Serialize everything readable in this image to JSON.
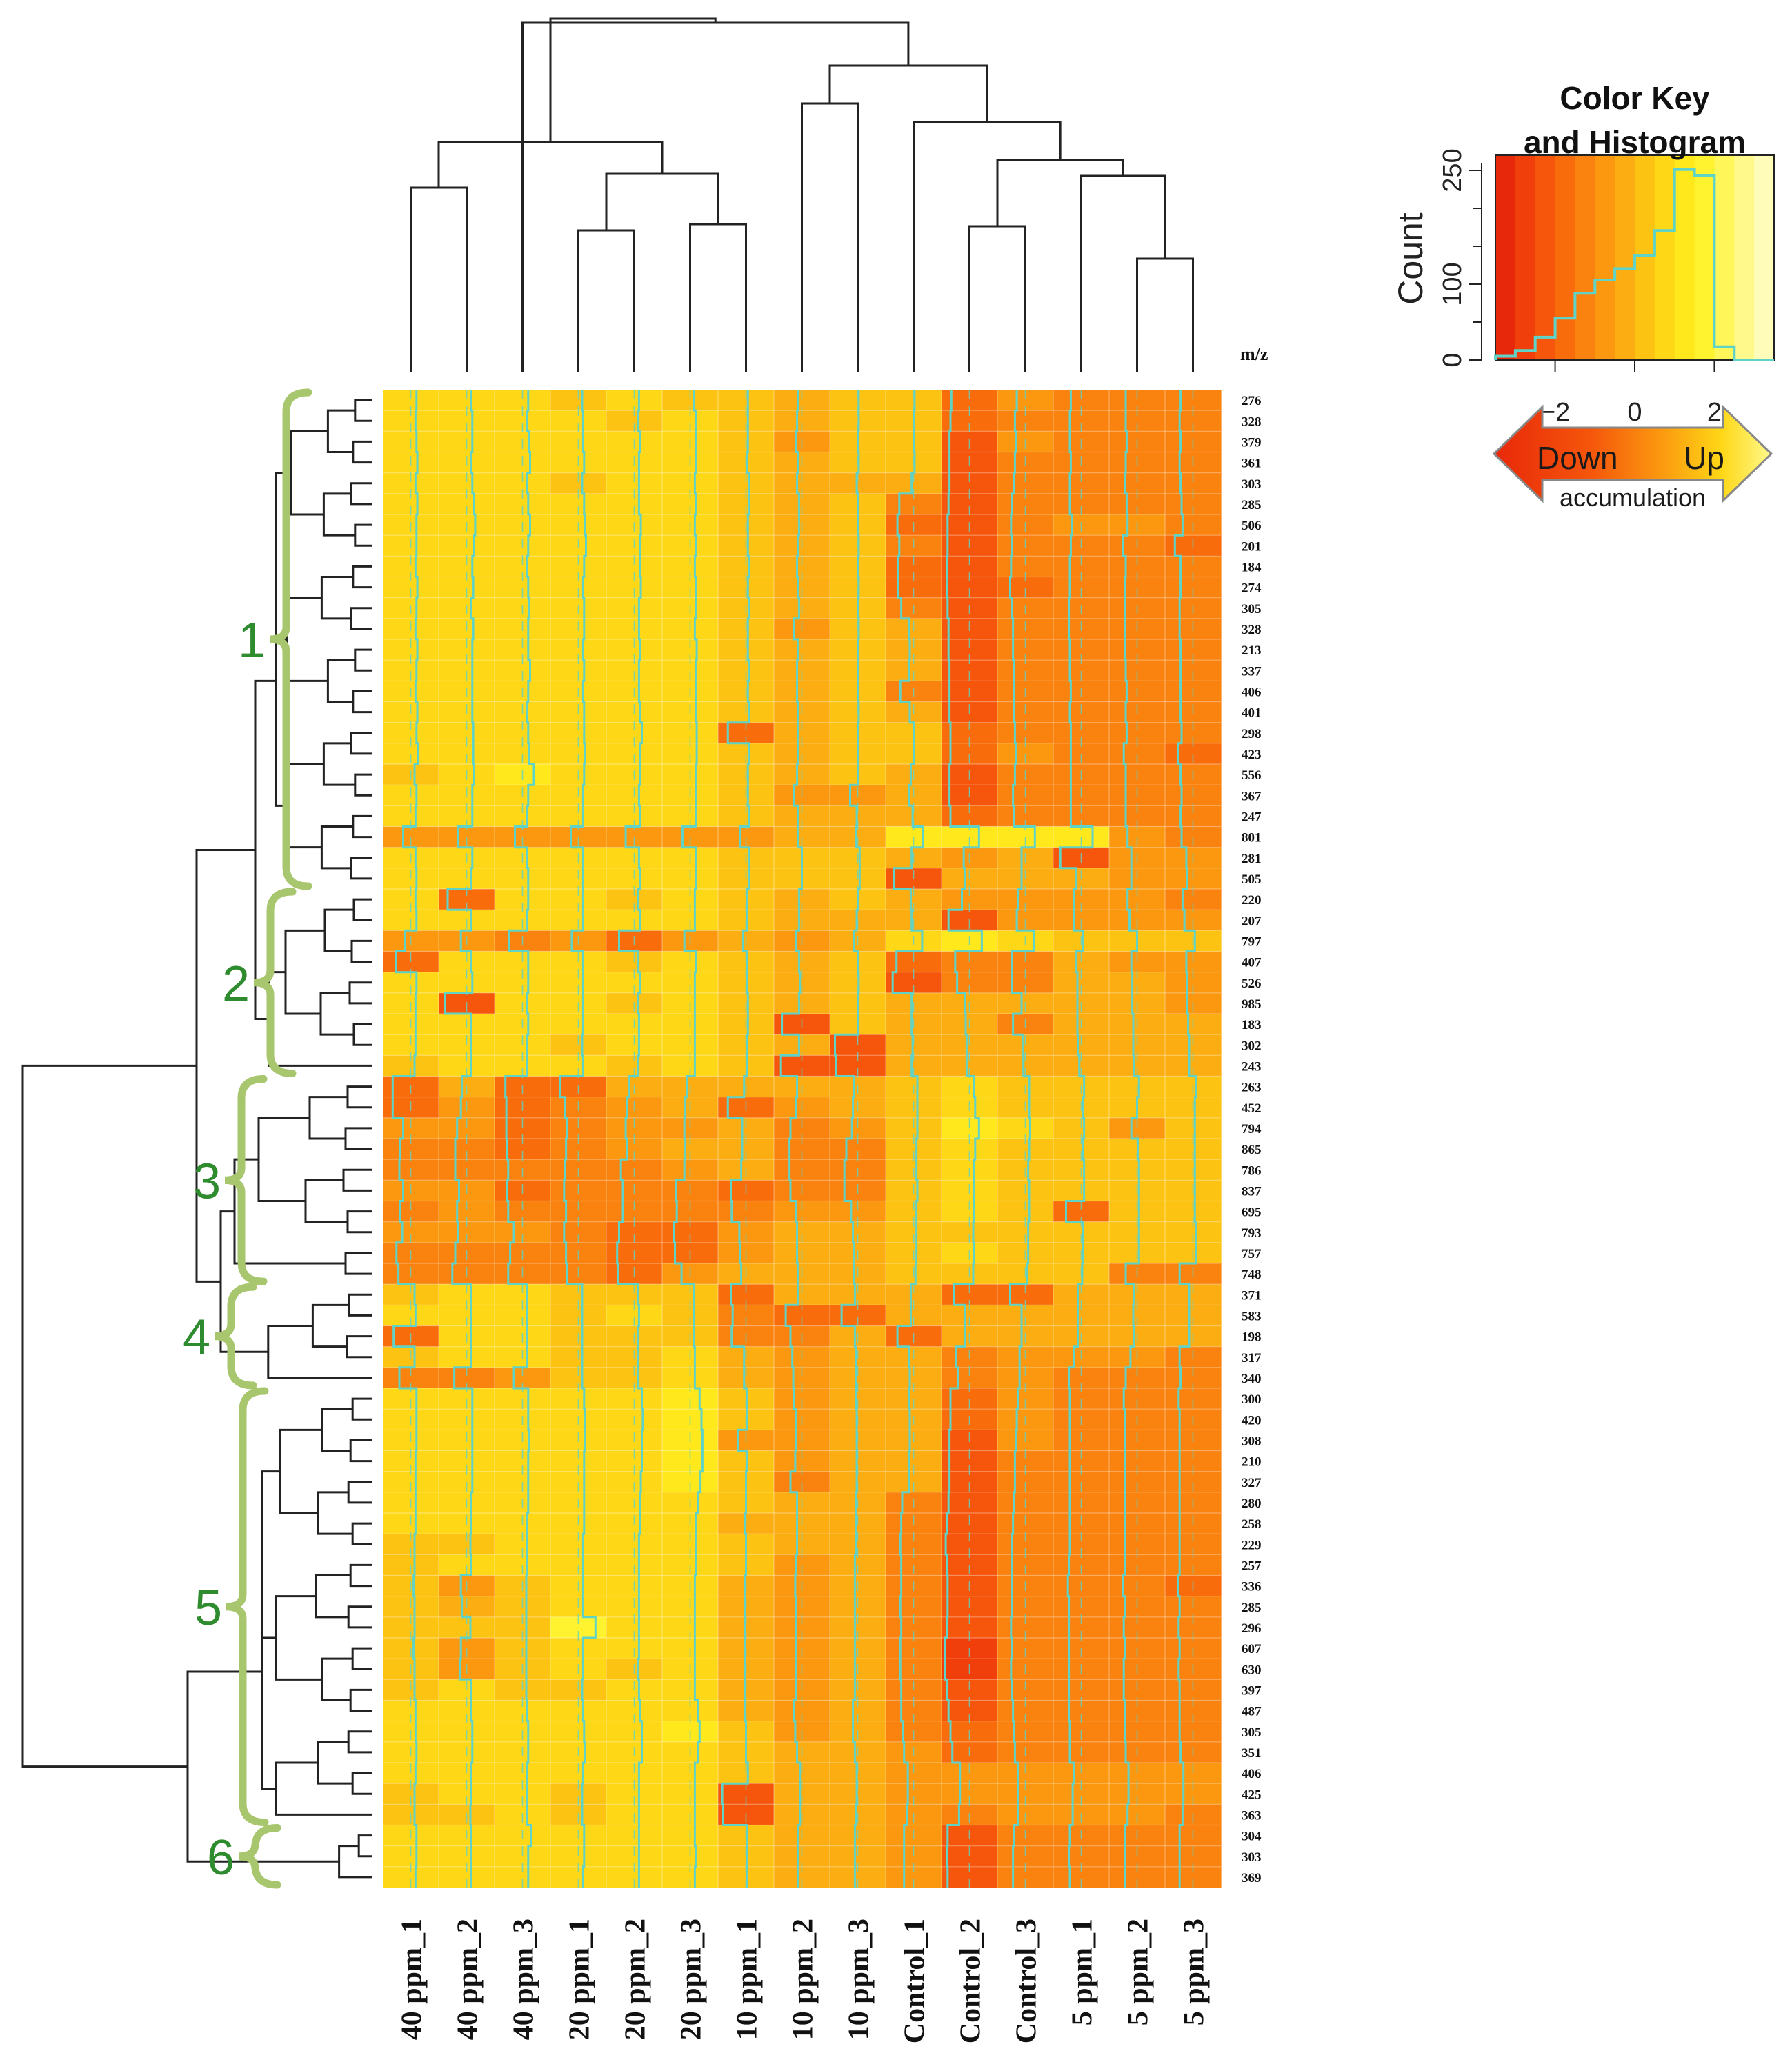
{
  "chart_data": {
    "type": "heatmap",
    "title": "",
    "row_axis_label": "m/z",
    "columns": [
      "40 ppm_1",
      "40 ppm_2",
      "40 ppm_3",
      "20 ppm_1",
      "20 ppm_2",
      "20 ppm_3",
      "10 ppm_1",
      "10 ppm_2",
      "10 ppm_3",
      "Control_1",
      "Control_2",
      "Control_3",
      "5 ppm_1",
      "5 ppm_2",
      "5 ppm_3"
    ],
    "rows": [
      "276",
      "328",
      "379",
      "361",
      "303",
      "285",
      "506",
      "201",
      "184",
      "274",
      "305",
      "328",
      "213",
      "337",
      "406",
      "401",
      "298",
      "423",
      "556",
      "367",
      "247",
      "801",
      "281",
      "505",
      "220",
      "207",
      "797",
      "407",
      "526",
      "985",
      "183",
      "302",
      "243",
      "263",
      "452",
      "794",
      "865",
      "786",
      "837",
      "695",
      "793",
      "757",
      "748",
      "371",
      "583",
      "198",
      "317",
      "340",
      "300",
      "420",
      "308",
      "210",
      "327",
      "280",
      "258",
      "229",
      "257",
      "336",
      "285",
      "296",
      "607",
      "630",
      "397",
      "487",
      "305",
      "351",
      "406",
      "425",
      "363",
      "304",
      "303",
      "369"
    ],
    "clusters": [
      {
        "label": "1",
        "from": 0,
        "to": 23
      },
      {
        "label": "2",
        "from": 24,
        "to": 32
      },
      {
        "label": "3",
        "from": 33,
        "to": 42
      },
      {
        "label": "4",
        "from": 43,
        "to": 47
      },
      {
        "label": "5",
        "from": 48,
        "to": 68
      },
      {
        "label": "6",
        "from": 69,
        "to": 71
      }
    ],
    "color_key": {
      "title_line1": "Color Key",
      "title_line2": "and Histogram",
      "ylabel": "Count",
      "y_ticks": [
        "0",
        "100",
        "250"
      ],
      "x_ticks": [
        "−2",
        "0",
        "2"
      ],
      "x_range": [
        -3.5,
        3.5
      ],
      "y_max": 270,
      "histogram_bins": [
        0.02,
        0.05,
        0.12,
        0.22,
        0.35,
        0.42,
        0.48,
        0.55,
        0.68,
        1.0,
        0.97,
        0.07,
        0.0,
        0.0
      ],
      "arrow_down": "Down",
      "arrow_up": "Up",
      "arrow_sub": "accumulation",
      "colors": [
        "#e8280a",
        "#f03f0a",
        "#f5560b",
        "#f86c0c",
        "#fa820e",
        "#fb980f",
        "#fcad11",
        "#fdc313",
        "#fed716",
        "#ffe81c",
        "#fff22e",
        "#fff65a",
        "#fff98c",
        "#fffbb8"
      ]
    },
    "cell_values_note": "z-score estimates, range about -3 to 2",
    "values": [
      [
        0.6,
        0.5,
        0.6,
        0.4,
        0.5,
        0.4,
        0.2,
        -0.4,
        0.1,
        0.1,
        -1.9,
        -0.9,
        -1.1,
        -1.2,
        -1.3
      ],
      [
        0.5,
        0.6,
        0.5,
        0.5,
        0.4,
        0.6,
        0.2,
        -0.5,
        0.1,
        0.0,
        -2.0,
        -1.1,
        -1.2,
        -1.2,
        -1.4
      ],
      [
        0.6,
        0.6,
        0.7,
        0.5,
        0.6,
        0.6,
        0.2,
        -0.6,
        0.0,
        0.0,
        -2.1,
        -1.0,
        -1.2,
        -1.1,
        -1.3
      ],
      [
        0.7,
        0.5,
        0.8,
        0.6,
        0.5,
        0.6,
        0.1,
        -0.4,
        0.1,
        0.1,
        -2.1,
        -1.1,
        -1.1,
        -1.2,
        -1.4
      ],
      [
        0.5,
        0.6,
        0.5,
        0.4,
        0.5,
        0.5,
        0.3,
        -0.5,
        -0.1,
        -0.2,
        -2.1,
        -1.2,
        -1.2,
        -1.3,
        -1.3
      ],
      [
        0.7,
        0.8,
        0.6,
        0.6,
        0.5,
        0.6,
        0.3,
        -0.3,
        0.0,
        -1.5,
        -2.2,
        -1.4,
        -1.2,
        -1.1,
        -1.2
      ],
      [
        0.6,
        0.9,
        0.8,
        0.7,
        0.7,
        0.5,
        0.2,
        -0.3,
        0.0,
        -1.7,
        -2.3,
        -1.5,
        -1.0,
        -1.0,
        -1.1
      ],
      [
        0.6,
        0.8,
        0.6,
        0.8,
        0.6,
        0.6,
        0.2,
        -0.4,
        0.1,
        -1.5,
        -2.3,
        -1.4,
        -1.1,
        -1.5,
        -1.9
      ],
      [
        0.5,
        0.6,
        0.5,
        0.6,
        0.6,
        0.5,
        0.3,
        -0.5,
        0.0,
        -1.6,
        -2.4,
        -1.5,
        -1.2,
        -1.2,
        -1.3
      ],
      [
        0.7,
        0.7,
        0.6,
        0.5,
        0.7,
        0.6,
        0.2,
        -0.4,
        0.1,
        -1.6,
        -2.4,
        -1.6,
        -1.2,
        -1.3,
        -1.3
      ],
      [
        0.6,
        0.5,
        0.7,
        0.6,
        0.5,
        0.6,
        0.3,
        -0.3,
        0.0,
        -1.3,
        -2.3,
        -1.4,
        -1.3,
        -1.3,
        -1.4
      ],
      [
        0.5,
        0.7,
        0.6,
        0.6,
        0.5,
        0.5,
        0.2,
        -0.8,
        0.1,
        -0.5,
        -2.2,
        -1.3,
        -1.3,
        -1.3,
        -1.4
      ],
      [
        0.7,
        0.6,
        0.6,
        0.5,
        0.6,
        0.7,
        0.2,
        -0.4,
        0.0,
        -0.4,
        -2.2,
        -1.3,
        -1.2,
        -1.3,
        -1.3
      ],
      [
        0.6,
        0.6,
        0.8,
        0.6,
        0.5,
        0.6,
        0.3,
        -0.5,
        0.0,
        -0.5,
        -2.1,
        -1.2,
        -1.2,
        -1.2,
        -1.3
      ],
      [
        0.5,
        0.6,
        0.6,
        0.5,
        0.5,
        0.6,
        0.2,
        -0.5,
        0.0,
        -1.4,
        -2.1,
        -1.2,
        -1.1,
        -1.1,
        -1.3
      ],
      [
        0.7,
        0.6,
        0.5,
        0.6,
        0.6,
        0.6,
        0.3,
        -0.4,
        0.1,
        -0.4,
        -2.1,
        -1.2,
        -1.2,
        -1.2,
        -1.3
      ],
      [
        0.6,
        0.7,
        0.6,
        0.6,
        0.8,
        0.7,
        -1.9,
        -0.4,
        0.0,
        0.0,
        -2.0,
        -1.1,
        -1.1,
        -1.1,
        -1.2
      ],
      [
        0.8,
        0.7,
        0.7,
        0.7,
        0.6,
        0.7,
        0.3,
        -0.4,
        0.0,
        0.0,
        -2.0,
        -1.0,
        -1.1,
        -1.4,
        -1.6
      ],
      [
        0.4,
        0.8,
        1.2,
        0.6,
        0.6,
        0.6,
        0.2,
        -0.5,
        0.0,
        -0.3,
        -2.1,
        -1.1,
        -1.1,
        -1.2,
        -1.3
      ],
      [
        0.6,
        0.6,
        0.6,
        0.5,
        0.5,
        0.6,
        0.2,
        -0.8,
        -0.8,
        -0.5,
        -2.1,
        -1.3,
        -1.1,
        -1.2,
        -1.2
      ],
      [
        0.5,
        0.6,
        0.5,
        0.5,
        0.6,
        0.6,
        0.3,
        -0.4,
        -0.1,
        -0.1,
        -2.0,
        -1.2,
        -1.1,
        -1.2,
        -1.3
      ],
      [
        -0.8,
        -0.9,
        -0.8,
        -0.8,
        -0.9,
        -0.8,
        -0.6,
        -0.4,
        -0.2,
        1.0,
        1.0,
        1.0,
        1.2,
        -1.0,
        -1.2
      ],
      [
        0.5,
        0.6,
        0.5,
        0.5,
        0.5,
        0.6,
        0.3,
        0.0,
        0.2,
        -0.2,
        -0.6,
        -0.4,
        -2.2,
        -0.6,
        -0.7
      ],
      [
        0.6,
        0.5,
        0.6,
        0.5,
        0.6,
        0.6,
        0.3,
        0.0,
        0.2,
        -2.1,
        -0.5,
        -0.4,
        -0.5,
        -0.6,
        -0.6
      ],
      [
        0.5,
        -2.0,
        0.6,
        0.5,
        0.4,
        0.5,
        0.1,
        -0.3,
        0.0,
        -0.3,
        -0.8,
        -0.8,
        -0.8,
        -1.0,
        -1.1
      ],
      [
        0.6,
        0.5,
        0.5,
        0.5,
        0.6,
        0.5,
        0.1,
        -0.3,
        -0.1,
        -0.2,
        -2.2,
        -0.9,
        -0.8,
        -0.8,
        -0.9
      ],
      [
        -0.6,
        -0.6,
        -1.4,
        -0.7,
        -1.6,
        -0.6,
        -0.3,
        -0.6,
        -0.4,
        0.9,
        1.3,
        0.9,
        0.2,
        0.0,
        0.2
      ],
      [
        -1.6,
        0.5,
        0.6,
        0.5,
        0.4,
        0.6,
        0.1,
        -0.3,
        0.0,
        -1.8,
        -1.5,
        -1.4,
        -0.5,
        -0.6,
        -0.7
      ],
      [
        0.6,
        0.6,
        0.6,
        0.5,
        0.6,
        0.5,
        0.1,
        -0.2,
        0.1,
        -2.2,
        -1.3,
        -1.4,
        -0.4,
        -0.5,
        -0.6
      ],
      [
        0.5,
        -2.3,
        0.5,
        0.5,
        0.4,
        0.5,
        0.2,
        -0.3,
        0.0,
        -0.2,
        -0.5,
        -0.4,
        -0.4,
        -0.5,
        -0.6
      ],
      [
        0.5,
        0.5,
        0.6,
        0.5,
        0.5,
        0.5,
        0.2,
        -2.1,
        0.0,
        -0.2,
        -0.4,
        -1.3,
        -0.4,
        -0.4,
        -0.5
      ],
      [
        0.5,
        0.5,
        0.5,
        0.4,
        0.5,
        0.5,
        0.1,
        -0.3,
        -2.4,
        -0.1,
        -0.3,
        -0.3,
        -0.3,
        -0.4,
        -0.4
      ],
      [
        0.4,
        0.5,
        0.5,
        0.5,
        0.4,
        0.5,
        0.1,
        -2.2,
        -2.3,
        -0.2,
        -0.3,
        -0.2,
        -0.2,
        -0.3,
        -0.4
      ],
      [
        -1.9,
        -0.5,
        -1.8,
        -1.9,
        -0.5,
        -0.3,
        -0.2,
        -0.5,
        -0.4,
        0.4,
        0.5,
        0.4,
        0.3,
        0.2,
        0.3
      ],
      [
        -1.9,
        -0.6,
        -1.7,
        -1.4,
        -0.8,
        -0.5,
        -1.9,
        -0.6,
        -0.5,
        0.4,
        0.6,
        0.4,
        0.2,
        0.0,
        0.2
      ],
      [
        -0.8,
        -1.0,
        -1.7,
        -1.2,
        -0.9,
        -0.6,
        -0.4,
        -1.2,
        -0.6,
        0.4,
        1.0,
        0.5,
        0.3,
        -0.6,
        0.2
      ],
      [
        -1.1,
        -1.2,
        -1.6,
        -1.3,
        -0.8,
        -0.5,
        -0.4,
        -1.3,
        -1.2,
        0.3,
        0.6,
        0.4,
        0.2,
        0.1,
        0.2
      ],
      [
        -1.2,
        -1.2,
        -1.5,
        -1.4,
        -1.4,
        -0.6,
        -0.5,
        -1.3,
        -1.4,
        0.3,
        0.5,
        0.3,
        0.3,
        0.2,
        0.2
      ],
      [
        -0.8,
        -0.8,
        -1.6,
        -1.5,
        -1.2,
        -1.5,
        -1.6,
        -1.2,
        -1.4,
        0.4,
        0.5,
        0.4,
        0.3,
        0.2,
        0.2
      ],
      [
        -1.1,
        -1.0,
        -1.5,
        -1.3,
        -1.2,
        -1.4,
        -1.5,
        -0.6,
        -0.7,
        0.3,
        0.5,
        0.4,
        -1.6,
        0.2,
        0.2
      ],
      [
        -0.9,
        -0.9,
        -0.9,
        -1.5,
        -1.6,
        -1.7,
        -0.7,
        -0.5,
        -0.5,
        0.3,
        0.4,
        0.3,
        0.2,
        0.2,
        0.3
      ],
      [
        -1.5,
        -1.2,
        -1.3,
        -1.3,
        -1.8,
        -1.6,
        -0.6,
        -0.5,
        -0.4,
        0.3,
        0.5,
        0.3,
        0.2,
        0.2,
        0.3
      ],
      [
        -1.3,
        -1.5,
        -1.5,
        -1.2,
        -1.7,
        -0.9,
        -0.5,
        -0.4,
        -0.4,
        0.2,
        0.4,
        0.2,
        0.1,
        -1.2,
        -1.4
      ],
      [
        0.4,
        0.5,
        0.5,
        0.4,
        0.4,
        0.4,
        -1.6,
        -0.4,
        -0.3,
        -0.3,
        -1.6,
        -1.6,
        -0.3,
        -0.3,
        -0.4
      ],
      [
        0.5,
        0.5,
        0.5,
        0.4,
        0.5,
        0.4,
        -1.4,
        -1.7,
        -1.7,
        -0.3,
        -0.5,
        -0.4,
        -0.3,
        -0.4,
        -0.4
      ],
      [
        -1.8,
        0.5,
        0.5,
        0.4,
        0.4,
        0.4,
        -1.5,
        -1.2,
        -0.3,
        -1.7,
        -0.5,
        -0.4,
        -0.3,
        -0.3,
        -0.4
      ],
      [
        0.4,
        0.5,
        0.5,
        0.4,
        0.4,
        0.5,
        -0.2,
        -1.0,
        -0.2,
        -0.5,
        -1.4,
        -0.6,
        -0.8,
        -0.7,
        -1.4
      ],
      [
        -1.2,
        -1.3,
        -0.9,
        0.4,
        0.4,
        0.5,
        -0.2,
        -0.9,
        -0.2,
        -0.4,
        -1.2,
        -0.6,
        -1.3,
        -1.2,
        -1.3
      ],
      [
        0.6,
        0.6,
        0.6,
        0.6,
        0.8,
        1.0,
        0.1,
        -0.8,
        -0.2,
        -0.5,
        -2.0,
        -0.8,
        -1.2,
        -1.4,
        -1.5
      ],
      [
        0.6,
        0.6,
        0.6,
        0.7,
        0.9,
        1.2,
        0.1,
        -0.6,
        -0.1,
        -0.4,
        -2.0,
        -0.9,
        -1.2,
        -1.3,
        -1.4
      ],
      [
        0.6,
        0.6,
        0.7,
        0.7,
        0.8,
        1.3,
        -0.8,
        -0.6,
        -0.1,
        -0.4,
        -2.1,
        -1.0,
        -1.2,
        -1.3,
        -1.4
      ],
      [
        0.5,
        0.6,
        0.6,
        0.6,
        0.8,
        1.3,
        0.1,
        -0.7,
        -0.1,
        -0.5,
        -2.1,
        -1.1,
        -1.2,
        -1.3,
        -1.4
      ],
      [
        0.5,
        0.6,
        0.6,
        0.6,
        0.7,
        1.1,
        0.0,
        -1.2,
        -0.1,
        -0.5,
        -2.1,
        -1.1,
        -1.2,
        -1.3,
        -1.4
      ],
      [
        0.5,
        0.5,
        0.6,
        0.6,
        0.6,
        0.8,
        0.0,
        -0.5,
        -0.2,
        -1.2,
        -2.2,
        -1.2,
        -1.2,
        -1.3,
        -1.4
      ],
      [
        0.5,
        0.5,
        0.5,
        0.6,
        0.6,
        0.6,
        -0.1,
        -0.5,
        -0.2,
        -1.3,
        -2.4,
        -1.3,
        -1.2,
        -1.3,
        -1.4
      ],
      [
        0.4,
        0.4,
        0.5,
        0.5,
        0.5,
        0.6,
        0.0,
        -0.5,
        -0.2,
        -1.4,
        -2.5,
        -1.4,
        -1.2,
        -1.3,
        -1.4
      ],
      [
        0.4,
        0.5,
        0.5,
        0.5,
        0.5,
        0.6,
        0.0,
        -0.6,
        -0.3,
        -1.3,
        -2.4,
        -1.4,
        -1.3,
        -1.3,
        -1.4
      ],
      [
        0.3,
        -0.6,
        0.4,
        0.5,
        0.5,
        0.5,
        -0.1,
        -0.7,
        -0.3,
        -1.3,
        -2.3,
        -1.4,
        -1.4,
        -1.5,
        -1.6
      ],
      [
        0.4,
        -0.5,
        0.4,
        0.5,
        0.5,
        0.5,
        -0.1,
        -0.6,
        -0.3,
        -1.4,
        -2.3,
        -1.4,
        -1.3,
        -1.3,
        -1.4
      ],
      [
        0.4,
        0.4,
        0.4,
        1.8,
        0.5,
        0.5,
        -0.1,
        -0.6,
        -0.3,
        -1.3,
        -2.4,
        -1.5,
        -1.3,
        -1.4,
        -1.5
      ],
      [
        0.3,
        -0.6,
        0.4,
        0.5,
        0.5,
        0.5,
        -0.1,
        -0.6,
        -0.3,
        -1.4,
        -2.6,
        -1.4,
        -1.3,
        -1.3,
        -1.4
      ],
      [
        0.4,
        -0.7,
        0.4,
        0.5,
        0.4,
        0.5,
        -0.1,
        -0.6,
        -0.3,
        -1.4,
        -2.6,
        -1.5,
        -1.3,
        -1.4,
        -1.5
      ],
      [
        0.4,
        0.5,
        0.4,
        0.4,
        0.5,
        0.5,
        -0.1,
        -0.6,
        -0.3,
        -1.3,
        -2.4,
        -1.4,
        -1.3,
        -1.4,
        -1.4
      ],
      [
        0.5,
        0.5,
        0.5,
        0.5,
        0.6,
        0.8,
        -0.1,
        -0.8,
        -0.5,
        -1.3,
        -2.2,
        -1.3,
        -1.3,
        -1.3,
        -1.4
      ],
      [
        0.5,
        0.6,
        0.6,
        0.6,
        0.8,
        1.0,
        0.0,
        -0.7,
        -0.5,
        -1.1,
        -2.0,
        -1.2,
        -1.2,
        -1.3,
        -1.4
      ],
      [
        0.6,
        0.6,
        0.6,
        0.7,
        0.8,
        0.8,
        0.0,
        -0.5,
        -0.3,
        -1.0,
        -1.8,
        -1.1,
        -1.2,
        -1.2,
        -1.3
      ],
      [
        0.5,
        0.5,
        0.5,
        0.5,
        0.5,
        0.5,
        0.2,
        -0.2,
        -0.1,
        -0.6,
        -1.0,
        -0.8,
        -0.8,
        -0.9,
        -1.0
      ],
      [
        0.4,
        0.5,
        0.5,
        0.4,
        0.5,
        0.5,
        -2.5,
        -0.2,
        -0.1,
        -0.6,
        -1.0,
        -0.8,
        -0.9,
        -0.9,
        -1.0
      ],
      [
        0.4,
        0.4,
        0.5,
        0.4,
        0.5,
        0.5,
        -2.4,
        -0.2,
        -0.2,
        -0.7,
        -1.1,
        -0.8,
        -0.9,
        -1.0,
        -1.1
      ],
      [
        0.6,
        0.5,
        0.9,
        0.6,
        0.5,
        0.5,
        0.1,
        -0.4,
        -0.3,
        -1.0,
        -2.3,
        -1.2,
        -1.2,
        -1.3,
        -1.4
      ],
      [
        0.6,
        0.5,
        0.6,
        0.6,
        0.5,
        0.6,
        0.1,
        -0.4,
        -0.3,
        -1.0,
        -2.4,
        -1.3,
        -1.3,
        -1.3,
        -1.4
      ],
      [
        0.5,
        0.5,
        0.6,
        0.5,
        0.5,
        0.5,
        0.1,
        -0.4,
        -0.3,
        -1.0,
        -2.3,
        -1.3,
        -1.2,
        -1.3,
        -1.4
      ]
    ]
  }
}
